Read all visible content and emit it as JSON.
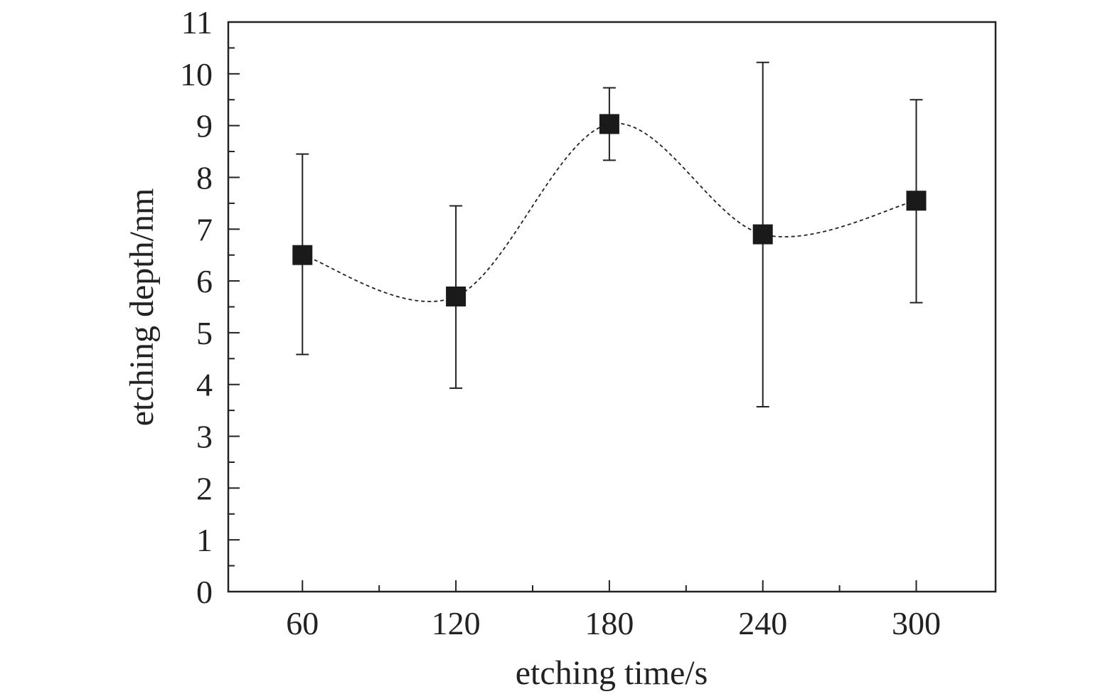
{
  "chart_data": {
    "type": "scatter",
    "title": "",
    "xlabel": "etching time/s",
    "ylabel": "etching depth/nm",
    "xlim": [
      31,
      331
    ],
    "ylim": [
      0,
      11
    ],
    "x_ticks": [
      60,
      120,
      180,
      240,
      300
    ],
    "x_tick_labels": [
      "60",
      "120",
      "180",
      "240",
      "300"
    ],
    "y_ticks": [
      0,
      1,
      2,
      3,
      4,
      5,
      6,
      7,
      8,
      9,
      10,
      11
    ],
    "y_tick_labels": [
      "0",
      "1",
      "2",
      "3",
      "4",
      "5",
      "6",
      "7",
      "8",
      "9",
      "10",
      "11"
    ],
    "grid": false,
    "legend": false,
    "colors": {
      "marker": "#1a1a1a",
      "axis": "#222222",
      "errorbar": "#222222",
      "fit_curve": "#222222"
    },
    "series": [
      {
        "x": [
          60,
          120,
          180,
          240,
          300
        ],
        "y": [
          6.5,
          5.7,
          9.03,
          6.9,
          7.55
        ],
        "y_error_low": [
          4.58,
          3.93,
          8.33,
          3.57,
          5.58
        ],
        "y_error_high": [
          8.45,
          7.45,
          9.73,
          10.22,
          9.5
        ],
        "marker": "square",
        "line": "smooth-dashed"
      }
    ]
  }
}
